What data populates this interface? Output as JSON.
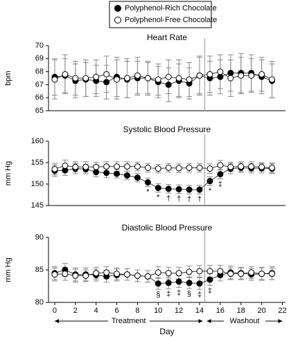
{
  "chart_data": [
    {
      "type": "line",
      "title": "Heart Rate",
      "y_label": "bpm",
      "ylim": [
        65,
        70
      ],
      "yticks": [
        65,
        66,
        67,
        68,
        69,
        70
      ],
      "xlim": [
        -0.6,
        22.3
      ],
      "vline": 14.5,
      "series": [
        {
          "name": "Polyphenol-Rich Chocolate",
          "color": "#000000",
          "values": [
            67.6,
            67.7,
            67.3,
            67.4,
            67.3,
            67.2,
            67.6,
            67.4,
            67.5,
            67.5,
            67.2,
            67.0,
            67.3,
            67.1,
            67.7,
            67.5,
            67.6,
            67.9,
            67.9,
            67.9,
            67.6,
            67.3
          ],
          "errors": [
            1.4,
            1.3,
            1.3,
            1.3,
            1.2,
            1.3,
            1.5,
            1.4,
            1.3,
            1.2,
            1.2,
            1.3,
            1.3,
            1.2,
            1.4,
            1.3,
            1.3,
            1.4,
            1.5,
            1.4,
            1.3,
            1.3
          ],
          "annotations": [
            null,
            null,
            null,
            null,
            null,
            null,
            null,
            null,
            null,
            null,
            null,
            null,
            null,
            null,
            null,
            null,
            null,
            null,
            null,
            null,
            null,
            null
          ]
        },
        {
          "name": "Polyphenol-Free Chocolate",
          "color": "#ffffff",
          "values": [
            67.4,
            67.8,
            67.5,
            67.5,
            67.6,
            67.8,
            67.4,
            67.5,
            67.7,
            67.5,
            67.4,
            67.6,
            67.5,
            67.4,
            67.7,
            67.8,
            68.0,
            67.5,
            67.7,
            67.7,
            67.8,
            67.4
          ],
          "errors": [
            1.5,
            1.5,
            1.3,
            1.4,
            1.3,
            1.4,
            1.5,
            1.5,
            1.4,
            1.3,
            1.2,
            1.3,
            1.4,
            1.3,
            1.5,
            1.4,
            1.3,
            1.4,
            1.4,
            1.3,
            1.3,
            1.4
          ],
          "annotations": [
            null,
            null,
            null,
            null,
            null,
            null,
            null,
            null,
            null,
            null,
            null,
            null,
            null,
            null,
            null,
            null,
            null,
            null,
            null,
            null,
            null,
            null
          ]
        }
      ]
    },
    {
      "type": "line",
      "title": "Systolic Blood Pressure",
      "y_label": "mm Hg",
      "ylim": [
        145,
        160
      ],
      "yticks": [
        145,
        150,
        155,
        160
      ],
      "xlim": [
        -0.6,
        22.3
      ],
      "vline": 14.5,
      "series": [
        {
          "name": "Polyphenol-Rich Chocolate",
          "color": "#000000",
          "values": [
            153.1,
            153.2,
            153.6,
            153.5,
            152.8,
            152.6,
            152.4,
            152.0,
            151.5,
            150.4,
            149.1,
            148.9,
            148.8,
            148.7,
            148.7,
            150.7,
            152.3,
            153.6,
            153.8,
            153.7,
            153.7,
            153.6
          ],
          "errors": [
            1.3,
            1.2,
            1.2,
            1.1,
            1.1,
            1.1,
            1.0,
            1.0,
            1.0,
            1.0,
            1.0,
            1.0,
            1.0,
            1.0,
            1.0,
            1.0,
            1.1,
            1.2,
            1.1,
            1.1,
            1.1,
            1.1
          ],
          "annotations": [
            null,
            null,
            null,
            null,
            null,
            null,
            null,
            null,
            null,
            "*",
            "*",
            "†",
            "†",
            "†",
            "†",
            "*",
            "‡",
            null,
            null,
            null,
            null,
            null
          ]
        },
        {
          "name": "Polyphenol-Free Chocolate",
          "color": "#ffffff",
          "values": [
            153.5,
            154.3,
            154.0,
            154.0,
            154.0,
            154.1,
            154.1,
            154.1,
            154.1,
            153.8,
            153.6,
            153.8,
            153.7,
            153.8,
            153.8,
            153.6,
            154.4,
            154.0,
            154.1,
            154.1,
            154.0,
            153.8
          ],
          "errors": [
            1.3,
            1.3,
            1.2,
            1.2,
            1.1,
            1.1,
            1.1,
            1.1,
            1.0,
            1.0,
            1.0,
            1.0,
            1.0,
            1.0,
            1.0,
            1.1,
            1.1,
            1.1,
            1.1,
            1.1,
            1.0,
            1.1
          ],
          "annotations": [
            null,
            null,
            null,
            null,
            null,
            null,
            null,
            null,
            null,
            null,
            null,
            null,
            null,
            null,
            null,
            null,
            null,
            null,
            null,
            null,
            null,
            null
          ]
        }
      ]
    },
    {
      "type": "line",
      "title": "Diastolic Blood Pressure",
      "y_label": "mm Hg",
      "ylim": [
        80,
        90
      ],
      "yticks": [
        80,
        85,
        90
      ],
      "xlim": [
        -0.6,
        22.3
      ],
      "vline": 14.5,
      "xticks": [
        0,
        2,
        4,
        6,
        8,
        10,
        12,
        14,
        16,
        18,
        20,
        22
      ],
      "x_label": "Day",
      "phases": [
        {
          "label": "Treatment",
          "from": 0,
          "to": 14.5
        },
        {
          "label": "Washout",
          "from": 14.5,
          "to": 22
        }
      ],
      "series": [
        {
          "name": "Polyphenol-Rich Chocolate",
          "color": "#000000",
          "values": [
            84.5,
            85.0,
            84.3,
            84.3,
            84.2,
            84.0,
            84.2,
            84.3,
            84.1,
            84.0,
            82.9,
            83.0,
            83.2,
            83.0,
            82.9,
            83.5,
            84.2,
            84.6,
            84.5,
            84.3,
            84.4,
            84.5
          ],
          "errors": [
            1.0,
            1.0,
            1.0,
            1.0,
            0.9,
            0.9,
            0.9,
            0.9,
            0.9,
            0.9,
            0.9,
            0.9,
            0.9,
            0.9,
            0.9,
            0.9,
            0.9,
            1.0,
            0.9,
            0.9,
            1.0,
            1.0
          ],
          "annotations": [
            null,
            null,
            null,
            null,
            null,
            null,
            null,
            null,
            null,
            null,
            "§",
            "‡",
            "‡",
            "§",
            "‡",
            "‡",
            null,
            null,
            null,
            null,
            null,
            null
          ]
        },
        {
          "name": "Polyphenol-Free Chocolate",
          "color": "#ffffff",
          "values": [
            84.3,
            84.4,
            84.1,
            84.1,
            84.5,
            84.6,
            84.4,
            84.3,
            84.1,
            84.0,
            84.6,
            84.5,
            84.5,
            84.7,
            84.8,
            84.8,
            84.8,
            84.4,
            84.4,
            84.6,
            84.4,
            84.4
          ],
          "errors": [
            1.0,
            1.0,
            1.0,
            0.9,
            0.9,
            0.9,
            0.9,
            0.9,
            0.9,
            0.9,
            0.9,
            0.9,
            0.9,
            0.9,
            0.9,
            0.9,
            0.9,
            0.9,
            0.9,
            0.9,
            0.9,
            0.9
          ],
          "annotations": [
            null,
            null,
            null,
            null,
            null,
            null,
            null,
            null,
            null,
            null,
            null,
            null,
            null,
            null,
            null,
            null,
            null,
            null,
            null,
            null,
            null,
            null
          ]
        }
      ]
    }
  ]
}
